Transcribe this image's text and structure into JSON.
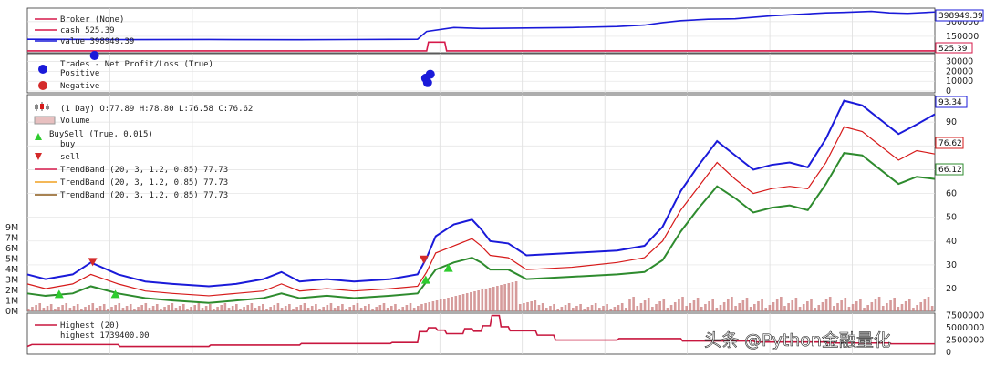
{
  "chart_data": [
    {
      "type": "line",
      "panel": "broker",
      "legend": {
        "title": "Broker (None)",
        "cash_label": "cash 525.39",
        "value_label": "value 398949.39"
      },
      "colors": {
        "cash": "#d6184a",
        "value": "#1a1ad9"
      },
      "yticks": [
        "150000",
        "300000"
      ],
      "last_value_tag": "398949.39",
      "last_cash_tag": "525.39",
      "series": [
        {
          "name": "value",
          "x": [
            0,
            0.05,
            0.12,
            0.2,
            0.3,
            0.4,
            0.43,
            0.44,
            0.47,
            0.5,
            0.55,
            0.6,
            0.65,
            0.68,
            0.7,
            0.72,
            0.75,
            0.78,
            0.8,
            0.82,
            0.84,
            0.86,
            0.88,
            0.9,
            0.93,
            0.95,
            0.97,
            1
          ],
          "values": [
            120000,
            118000,
            116000,
            117000,
            115000,
            118000,
            120000,
            200000,
            240000,
            230000,
            235000,
            240000,
            250000,
            265000,
            290000,
            310000,
            325000,
            330000,
            345000,
            360000,
            370000,
            380000,
            390000,
            395000,
            405000,
            390000,
            385000,
            399000
          ]
        },
        {
          "name": "cash",
          "x": [
            0,
            0.44,
            0.442,
            0.46,
            0.462,
            1
          ],
          "values": [
            525,
            525,
            90000,
            90000,
            525,
            525
          ]
        }
      ]
    },
    {
      "type": "scatter",
      "panel": "trades",
      "legend": {
        "title": "Trades - Net Profit/Loss (True)",
        "positive": "Positive",
        "negative": "Negative"
      },
      "colors": {
        "positive": "#1a1ad9",
        "negative": "#d42a2a"
      },
      "yticks": [
        "0",
        "10000",
        "20000",
        "30000"
      ],
      "points": [
        {
          "x": 0.074,
          "y": 36000,
          "kind": "positive"
        },
        {
          "x": 0.439,
          "y": 13000,
          "kind": "positive"
        },
        {
          "x": 0.444,
          "y": 17000,
          "kind": "positive"
        },
        {
          "x": 0.441,
          "y": 8500,
          "kind": "positive"
        }
      ]
    },
    {
      "type": "line",
      "panel": "price",
      "legend": {
        "ohlc": "(1 Day) O:77.89 H:78.80 L:76.58 C:76.62",
        "volume": "Volume",
        "buysell": "BuySell (True, 0.015)",
        "buy": "buy",
        "sell": "sell",
        "trendband_mid": "TrendBand (20, 3, 1.2, 0.85) 77.73",
        "trendband_up": "TrendBand (20, 3, 1.2, 0.85) 77.73",
        "trendband_dn": "TrendBand (20, 3, 1.2, 0.85) 77.73"
      },
      "colors": {
        "price": "#d61a1a",
        "upper": "#1a1ad9",
        "lower": "#2e8b2e",
        "volume": "#c87a7a"
      },
      "yticks": [
        20,
        30,
        40,
        50,
        60,
        70,
        80,
        90
      ],
      "volume_ticks": [
        "0M",
        "1M",
        "2M",
        "3M",
        "4M",
        "5M",
        "6M",
        "7M",
        "9M"
      ],
      "tags": {
        "upper": "93.34",
        "close": "76.62",
        "lower": "66.12"
      },
      "x": [
        0,
        0.02,
        0.05,
        0.07,
        0.1,
        0.13,
        0.16,
        0.2,
        0.23,
        0.26,
        0.28,
        0.3,
        0.33,
        0.36,
        0.4,
        0.43,
        0.44,
        0.45,
        0.47,
        0.49,
        0.5,
        0.51,
        0.53,
        0.55,
        0.6,
        0.65,
        0.68,
        0.7,
        0.72,
        0.74,
        0.76,
        0.78,
        0.8,
        0.82,
        0.84,
        0.86,
        0.88,
        0.9,
        0.92,
        0.94,
        0.96,
        0.98,
        1
      ],
      "series": [
        {
          "name": "close",
          "values": [
            22,
            20,
            22,
            26,
            22,
            19,
            18,
            17,
            18,
            19,
            22,
            19,
            20,
            19,
            20,
            21,
            27,
            35,
            38,
            41,
            38,
            34,
            33,
            28,
            29,
            31,
            33,
            40,
            53,
            63,
            73,
            66,
            60,
            62,
            63,
            62,
            73,
            88,
            86,
            80,
            74,
            78,
            76.6
          ]
        },
        {
          "name": "upper",
          "values": [
            26,
            24,
            26,
            31,
            26,
            23,
            22,
            21,
            22,
            24,
            27,
            23,
            24,
            23,
            24,
            26,
            33,
            42,
            47,
            49,
            45,
            40,
            39,
            34,
            35,
            36,
            38,
            46,
            61,
            72,
            82,
            76,
            70,
            72,
            73,
            71,
            83,
            99,
            97,
            91,
            85,
            89,
            93.3
          ]
        },
        {
          "name": "lower",
          "values": [
            18,
            17,
            18,
            21,
            18,
            16,
            15,
            14,
            15,
            16,
            18,
            16,
            17,
            16,
            17,
            18,
            23,
            28,
            31,
            33,
            31,
            28,
            28,
            24,
            25,
            26,
            27,
            32,
            44,
            54,
            63,
            58,
            52,
            54,
            55,
            53,
            64,
            77,
            76,
            70,
            64,
            67,
            66.1
          ]
        }
      ],
      "markers": [
        {
          "type": "sell",
          "x": 0.072,
          "y": 31
        },
        {
          "type": "sell",
          "x": 0.437,
          "y": 32
        },
        {
          "type": "buy",
          "x": 0.035,
          "y": 18
        },
        {
          "type": "buy",
          "x": 0.097,
          "y": 18
        },
        {
          "type": "buy",
          "x": 0.439,
          "y": 24
        },
        {
          "type": "buy",
          "x": 0.464,
          "y": 29
        }
      ]
    },
    {
      "type": "line",
      "panel": "highest",
      "legend": {
        "title": "Highest (20)",
        "value_label": "highest 1739400.00"
      },
      "colors": {
        "line": "#c8173f"
      },
      "yticks": [
        "0",
        "2500000",
        "5000000",
        "7500000"
      ],
      "series": [
        {
          "name": "highest",
          "x": [
            0,
            0.005,
            0.1,
            0.102,
            0.2,
            0.202,
            0.3,
            0.302,
            0.4,
            0.402,
            0.43,
            0.432,
            0.44,
            0.442,
            0.45,
            0.452,
            0.46,
            0.462,
            0.48,
            0.482,
            0.49,
            0.492,
            0.5,
            0.502,
            0.51,
            0.512,
            0.52,
            0.522,
            0.53,
            0.532,
            0.55,
            0.552,
            0.56,
            0.562,
            0.58,
            0.582,
            0.65,
            0.652,
            0.72,
            0.722,
            0.8,
            0.802,
            0.88,
            0.882,
            0.95,
            0.952,
            1
          ],
          "values": [
            1200000,
            1600000,
            1600000,
            1200000,
            1200000,
            1500000,
            1500000,
            1800000,
            1800000,
            2000000,
            2000000,
            4200000,
            4200000,
            5000000,
            5000000,
            4500000,
            4500000,
            3800000,
            3800000,
            4800000,
            4800000,
            4300000,
            4300000,
            5400000,
            5400000,
            7500000,
            7500000,
            5200000,
            5200000,
            4400000,
            4400000,
            4400000,
            4400000,
            3500000,
            3500000,
            2500000,
            2500000,
            2800000,
            2800000,
            2300000,
            2300000,
            2100000,
            2100000,
            1900000,
            1900000,
            1739400,
            1739400
          ]
        }
      ]
    }
  ],
  "watermark": "头条 @Python金融量化"
}
